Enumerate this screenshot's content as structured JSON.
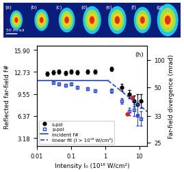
{
  "chart_data": {
    "type": "scatter",
    "panel_label": "(h)",
    "x_label": "Intensity I₀ (10¹⁸ W/cm²)",
    "y_label": "Reflected far-field f#",
    "y2_label": "Far-field divergence (mrad)",
    "log": "x",
    "grid": false,
    "legend": "lower left",
    "xlim": [
      0.01,
      17
    ],
    "xticks": [
      0.01,
      0.1,
      1,
      10
    ],
    "ylim": [
      2.0,
      16.5
    ],
    "yticks": [
      {
        "value": 3.18,
        "label": "3.18"
      },
      {
        "value": 6.37,
        "label": "6.37"
      },
      {
        "value": 9.55,
        "label": "9.55"
      },
      {
        "value": 12.73,
        "label": "12.73"
      },
      {
        "value": 15.9,
        "label": "15.90"
      }
    ],
    "y2lim": [
      200,
      24.2
    ],
    "y2ticks": [
      25,
      33,
      50,
      100
    ],
    "series": [
      {
        "name": "s-pol",
        "type": "scatter",
        "color": "#000000",
        "marker": "circle",
        "x": [
          0.02,
          0.03,
          0.045,
          0.07,
          0.1,
          0.15,
          0.3,
          0.5,
          1.5,
          3,
          5,
          7,
          9,
          11
        ],
        "values": [
          12.5,
          12.7,
          12.8,
          12.6,
          12.8,
          12.7,
          12.8,
          12.8,
          13.2,
          10.5,
          9.5,
          8.5,
          8.0,
          8.5
        ],
        "errors": [
          0.3,
          0.3,
          0.3,
          0.3,
          0.3,
          0.3,
          0.3,
          0.3,
          0.3,
          0.5,
          0.6,
          0.8,
          1.5,
          1.0
        ]
      },
      {
        "name": "p-pol",
        "type": "scatter",
        "color": "#1f3fd0",
        "marker": "open_square",
        "x": [
          0.03,
          0.045,
          0.07,
          0.1,
          0.15,
          0.3,
          0.5,
          1.5,
          3,
          5,
          7,
          9,
          11
        ],
        "values": [
          11.2,
          11.0,
          10.8,
          11.0,
          10.5,
          10.3,
          10.0,
          10.0,
          8.5,
          7.0,
          7.2,
          6.5,
          6.0
        ],
        "errors": [
          0.2,
          0.2,
          0.2,
          0.2,
          0.2,
          0.2,
          0.2,
          0.3,
          0.4,
          0.5,
          0.8,
          1.5,
          1.0
        ]
      },
      {
        "type": "scatter",
        "color": "#e02020",
        "marker": "circle",
        "x": [
          4.5,
          6
        ],
        "values": [
          6.6,
          9.0
        ]
      },
      {
        "name": "incident f#",
        "type": "line",
        "color": "#1f3fd0",
        "line_style": "solid",
        "x": [
          0.01,
          1.2
        ],
        "values": [
          11.5,
          11.5
        ]
      },
      {
        "name": "linear fit (I > 10¹⁸ W/cm²)",
        "type": "line",
        "color": "#1f3fd0",
        "line_style": "dashed",
        "x": [
          1.2,
          17
        ],
        "values": [
          11.5,
          7.0
        ]
      }
    ]
  },
  "panels": {
    "labels": [
      "(a)",
      "(b)",
      "(c)",
      "(d)",
      "(e)",
      "(f)",
      "(g)"
    ],
    "scale_bar": "50 mrad"
  }
}
